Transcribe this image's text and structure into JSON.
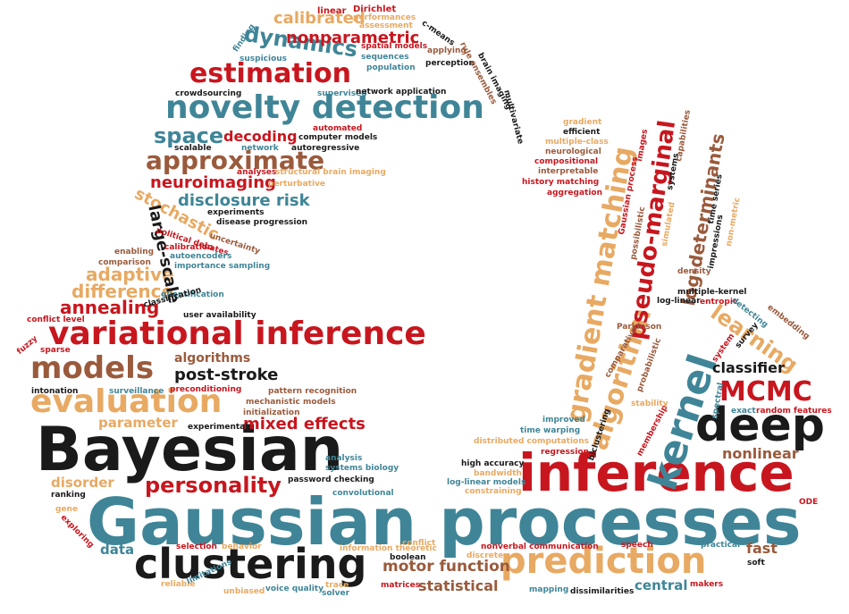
{
  "colors": {
    "red": "#c8161e",
    "teal": "#3f8597",
    "brown": "#9a5a3c",
    "tan": "#e8a962",
    "black": "#1a1a1a"
  },
  "words": {
    "gaussian_processes": "Gaussian processes",
    "bayesian": "Bayesian",
    "inference": "inference",
    "deep": "deep",
    "clustering": "clustering",
    "prediction": "prediction",
    "variational_inference": "variational inference",
    "kernel": "kernel",
    "novelty_detection": "novelty detection",
    "evaluation": "evaluation",
    "models": "models",
    "estimation": "estimation",
    "gradient_matching": "gradient matching",
    "algorithm": "algorithm",
    "pseudo_marginal": "pseudo-marginal",
    "mcmc": "MCMC",
    "approximate": "approximate",
    "dynamics": "dynamics",
    "space": "space",
    "personality": "personality",
    "learning": "learning",
    "nonparametric": "nonparametric",
    "calibrated": "calibrated",
    "log_determinants": "log-determinants",
    "mixed_effects": "mixed effects",
    "motor_function": "motor function",
    "post_stroke": "post-stroke",
    "annealing": "annealing",
    "difference": "difference",
    "adaptive": "adaptive",
    "neuroimaging": "neuroimaging",
    "disclosure_risk": "disclosure risk",
    "stochastic": "stochastic",
    "large_scale": "large-scale",
    "decoding": "decoding",
    "classifier": "classifier",
    "nonlinear": "nonlinear",
    "fast": "fast",
    "central": "central",
    "statistical": "statistical",
    "data": "data",
    "disorder": "disorder",
    "parameter": "parameter",
    "algorithms": "algorithms",
    "linear": "linear",
    "dirichlet": "Dirichlet",
    "performances": "performances",
    "assessment": "assessment",
    "c_means": "c-means",
    "spatial_models": "spatial models",
    "applying": "applying",
    "finding": "finding",
    "suspicious": "suspicious",
    "sequences": "sequences",
    "population": "population",
    "perception": "perception",
    "rule_ensembles": "rule ensembles",
    "brain_imaging": "brain imaging",
    "multivariate": "multivariate",
    "crowdsourcing": "crowdsourcing",
    "supervised": "supervised",
    "network_application": "network application",
    "automated": "automated",
    "computer_models": "computer models",
    "scalable": "scalable",
    "network": "network",
    "autoregressive": "autoregressive",
    "analyses": "analyses",
    "structural_brain_imaging": "structural brain imaging",
    "perturbative": "perturbative",
    "experiments": "experiments",
    "disease_progression": "disease progression",
    "political_debates": "political debates",
    "uncertainty": "uncertainty",
    "enabling": "enabling",
    "calibration": "calibration",
    "autoencoders": "autoencoders",
    "comparison": "comparison",
    "importance_sampling": "importance sampling",
    "quantification": "quantification",
    "classification": "classification",
    "user_availability": "user availability",
    "conflict_level": "conflict level",
    "fuzzy": "fuzzy",
    "sparse": "sparse",
    "intonation": "intonation",
    "surveillance": "surveillance",
    "preconditioning": "preconditioning",
    "pattern_recognition": "pattern recognition",
    "mechanistic_models": "mechanistic models",
    "initialization": "initialization",
    "experimental": "experimental",
    "analysis": "analysis",
    "systems_biology": "systems biology",
    "password_checking": "password checking",
    "convolutional": "convolutional",
    "ranking": "ranking",
    "gene": "gene",
    "exploring": "exploring",
    "selection": "selection",
    "behavior": "behavior",
    "information_theoretic": "information theoretic",
    "conflict": "conflict",
    "boolean": "boolean",
    "reliable": "reliable",
    "limitations": "limitations",
    "unbiased": "unbiased",
    "voice_quality": "voice quality",
    "trace": "trace",
    "solver": "solver",
    "matrices": "matrices",
    "high_accuracy": "high accuracy",
    "bandwidth": "bandwidth",
    "log_linear_models": "log-linear models",
    "constraining": "constraining",
    "nonverbal_communication": "nonverbal communication",
    "discrete": "discrete",
    "mapping": "mapping",
    "dissimilarities": "dissimilarities",
    "speech": "speech",
    "practical": "practical",
    "makers": "makers",
    "soft": "soft",
    "ode": "ODE",
    "exact": "exact",
    "random_features": "random features",
    "improved": "improved",
    "time_warping": "time warping",
    "distributed_computations": "distributed computations",
    "regression": "regression",
    "biclustering": "biclustering",
    "membership": "membership",
    "stability": "stability",
    "probabilistic": "probabilistic",
    "comparative": "comparative",
    "parkinson": "Parkinson",
    "spectral": "spectral",
    "system": "system",
    "survey": "survey",
    "multiple_kernel": "multiple-kernel",
    "log_linear": "log-linear",
    "entropic": "entropic",
    "detecting": "detecting",
    "embedding": "embedding",
    "density": "density",
    "gradient": "gradient",
    "efficient": "efficient",
    "multiple_class": "multiple-class",
    "neurological": "neurological",
    "compositional": "compositional",
    "interpretable": "interpretable",
    "history_matching": "history matching",
    "aggregation": "aggregation",
    "gaussian_process": "Gaussian process",
    "images": "images",
    "systems": "systems",
    "capabilities": "capabilities",
    "simulated": "simulated",
    "possibilistic": "possibilistic",
    "time_series": "time series",
    "non_metric": "non-metric",
    "impressions": "impressions"
  }
}
